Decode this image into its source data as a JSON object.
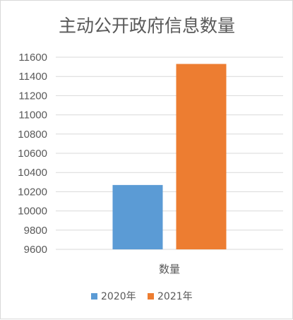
{
  "chart_data": {
    "type": "bar",
    "title": "主动公开政府信息数量",
    "categories": [
      "数量"
    ],
    "series": [
      {
        "name": "2020年",
        "values": [
          10270
        ],
        "color": "#5b9bd5"
      },
      {
        "name": "2021年",
        "values": [
          11530
        ],
        "color": "#ed7d31"
      }
    ],
    "ylim": [
      9600,
      11600
    ],
    "yticks": [
      9600,
      9800,
      10000,
      10200,
      10400,
      10600,
      10800,
      11000,
      11200,
      11400,
      11600
    ],
    "grid": true,
    "legend_position": "bottom"
  }
}
